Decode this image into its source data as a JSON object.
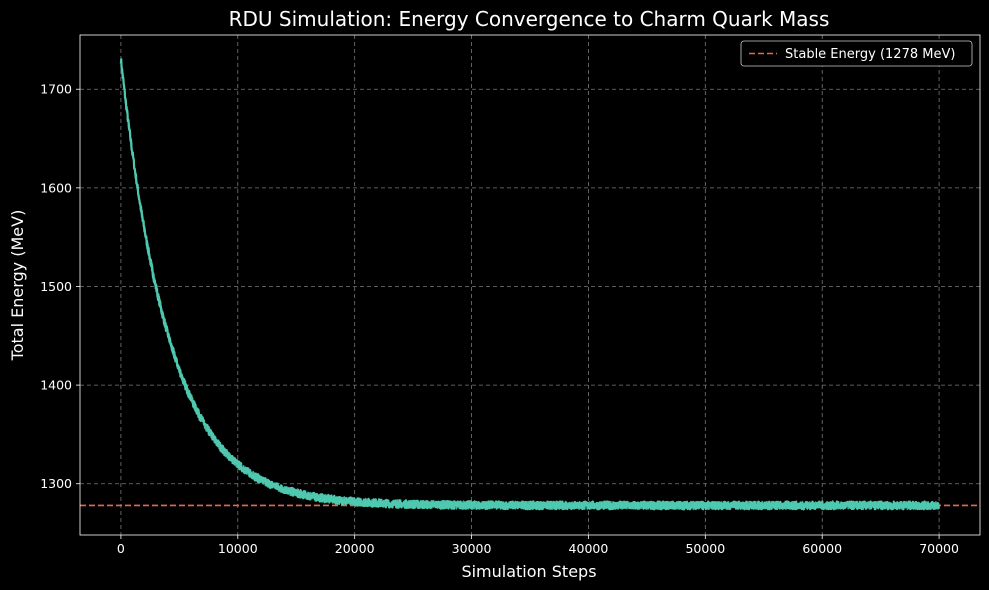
{
  "chart_data": {
    "type": "line",
    "title": "RDU Simulation: Energy Convergence to Charm Quark Mass",
    "xlabel": "Simulation Steps",
    "ylabel": "Total Energy (MeV)",
    "xlim": [
      -3500,
      73500
    ],
    "ylim": [
      1248,
      1755
    ],
    "xticks": [
      0,
      10000,
      20000,
      30000,
      40000,
      50000,
      60000,
      70000
    ],
    "yticks": [
      1300,
      1400,
      1500,
      1600,
      1700
    ],
    "grid": true,
    "legend_position": "top-right",
    "series": [
      {
        "name": "",
        "color": "#4fc8b0",
        "decay": {
          "start_value": 1730,
          "final_value": 1278,
          "time_constant": 4200,
          "noise_amplitude": 4
        },
        "x": [
          0,
          1000,
          2000,
          3000,
          4000,
          5000,
          6000,
          7000,
          8000,
          9000,
          10000,
          12000,
          14000,
          16000,
          18000,
          20000,
          22000,
          25000,
          30000,
          35000,
          40000,
          45000,
          50000,
          55000,
          60000,
          65000,
          70000
        ],
        "y": [
          1730,
          1655,
          1591,
          1533,
          1485,
          1442,
          1406,
          1396,
          1370,
          1351,
          1335,
          1310,
          1298,
          1291,
          1287,
          1284,
          1282,
          1280,
          1279,
          1278,
          1278,
          1278,
          1278,
          1278,
          1278,
          1278,
          1278
        ]
      }
    ],
    "reference_lines": [
      {
        "name": "Stable Energy (1278 MeV)",
        "y": 1278,
        "color": "#e8694a",
        "style": "dashed"
      }
    ]
  }
}
